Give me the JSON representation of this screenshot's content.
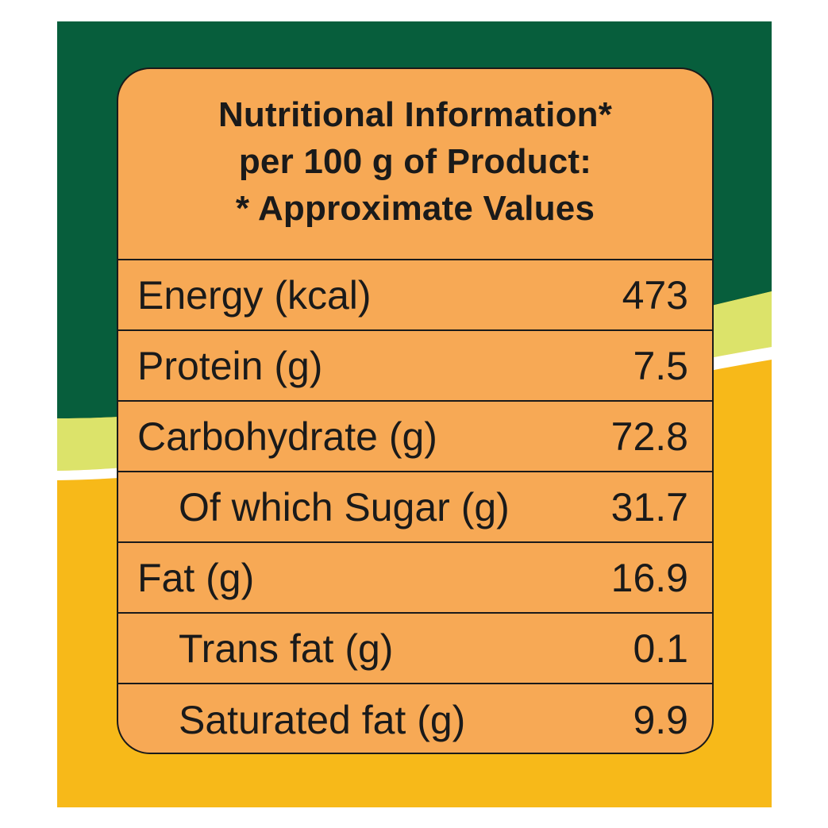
{
  "label": {
    "header_lines": [
      "Nutritional Information*",
      "per 100 g of Product:",
      "* Approximate Values"
    ],
    "rows": [
      {
        "label": "Energy (kcal)",
        "value": "473",
        "indent": false
      },
      {
        "label": "Protein (g)",
        "value": "7.5",
        "indent": false
      },
      {
        "label": "Carbohydrate (g)",
        "value": "72.8",
        "indent": false
      },
      {
        "label": "Of which Sugar (g)",
        "value": "31.7",
        "indent": true
      },
      {
        "label": "Fat (g)",
        "value": "16.9",
        "indent": false
      },
      {
        "label": "Trans fat (g)",
        "value": "0.1",
        "indent": true
      },
      {
        "label": "Saturated fat (g)",
        "value": "9.9",
        "indent": true
      }
    ]
  },
  "colors": {
    "green": "#075e3c",
    "lime": "#dce36a",
    "yellow": "#f7b919",
    "label_orange": "#f7a955",
    "text": "#1a1a1a"
  }
}
